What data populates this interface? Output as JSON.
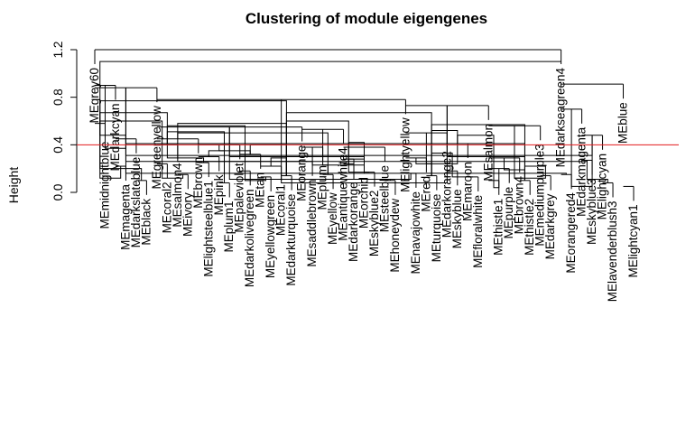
{
  "chart_data": {
    "type": "dendrogram",
    "title": "Clustering of module eigengenes",
    "ylabel": "Height",
    "xlabel": "",
    "ylim": [
      0,
      1.2
    ],
    "yticks": [
      0.0,
      0.4,
      0.8,
      1.2
    ],
    "ytick_labels": [
      "0.0",
      "0.4",
      "0.8",
      "1.2"
    ],
    "cut_height": 0.4,
    "cut_line_color": "#e31a1c",
    "line_color": "#000000",
    "leaves": [
      "MEgrey60",
      "MEmidnightblue",
      "MEdarkcyan",
      "MEmagenta",
      "MEdarkslateblue",
      "MEblack",
      "MEgreenyellow",
      "MEcoral2",
      "MEsalmon4",
      "MEivory",
      "MEbrown",
      "MElightsteelblue1",
      "MEpink",
      "MEplum1",
      "MEpaleviolet",
      "MEdarkolivegreen",
      "MEtan",
      "MEyellowgreen",
      "MEcoral1",
      "MEdarkturquoise",
      "MEorange",
      "MEsaddlebrown",
      "MEplum",
      "MEyellow",
      "MEantiquewhite4",
      "MEdarkorange",
      "MEorchid",
      "MEskyblue2",
      "MEsteelblue",
      "MEhoneydew",
      "MElightyellow",
      "MEnavajowhite",
      "MEred",
      "MEturquoise",
      "MEdarkorange2",
      "MEskyblue",
      "MEmaroon",
      "MEfloralwhite",
      "MEsalmon",
      "MEthistle1",
      "MEpurple",
      "MEbrown4",
      "MEthistle2",
      "MEmediumpurple3",
      "MEdarkgrey",
      "MEdarkseagreen4",
      "MEorangered4",
      "MEdarkmagenta",
      "MEskyblue3",
      "MElightcyan",
      "MElavenderblush3",
      "MEblue",
      "MElightcyan1"
    ],
    "merges": [
      [
        0,
        1,
        0.58
      ],
      [
        2,
        3,
        0.22
      ],
      [
        4,
        5,
        0.1
      ],
      [
        2,
        4,
        0.45
      ],
      [
        0,
        2,
        0.9
      ],
      [
        6,
        7,
        0.24
      ],
      [
        8,
        9,
        0.15
      ],
      [
        6,
        8,
        0.4
      ],
      [
        10,
        11,
        0.25
      ],
      [
        12,
        13,
        0.08
      ],
      [
        10,
        12,
        0.3
      ],
      [
        14,
        15,
        0.18
      ],
      [
        16,
        17,
        0.13
      ],
      [
        18,
        19,
        0.14
      ],
      [
        16,
        18,
        0.22
      ],
      [
        14,
        16,
        0.32
      ],
      [
        10,
        14,
        0.4
      ],
      [
        6,
        10,
        0.45
      ],
      [
        20,
        21,
        0.26
      ],
      [
        22,
        23,
        0.15
      ],
      [
        20,
        22,
        0.38
      ],
      [
        24,
        25,
        0.24
      ],
      [
        26,
        27,
        0.17
      ],
      [
        24,
        26,
        0.28
      ],
      [
        28,
        29,
        0.1
      ],
      [
        24,
        28,
        0.38
      ],
      [
        20,
        24,
        0.53
      ],
      [
        6,
        20,
        0.55
      ],
      [
        30,
        31,
        0.16
      ],
      [
        32,
        33,
        0.14
      ],
      [
        30,
        32,
        0.29
      ],
      [
        34,
        35,
        0.18
      ],
      [
        36,
        37,
        0.13
      ],
      [
        34,
        36,
        0.41
      ],
      [
        30,
        34,
        0.5
      ],
      [
        38,
        39,
        0.1
      ],
      [
        38,
        40,
        0.2
      ],
      [
        41,
        42,
        0.1
      ],
      [
        38,
        41,
        0.29
      ],
      [
        43,
        44,
        0.14
      ],
      [
        38,
        43,
        0.56
      ],
      [
        30,
        38,
        0.73
      ],
      [
        6,
        30,
        0.78
      ],
      [
        0,
        6,
        0.88
      ],
      [
        45,
        46,
        0.15
      ],
      [
        47,
        48,
        0.27
      ],
      [
        49,
        50,
        0.08
      ],
      [
        47,
        49,
        0.48
      ],
      [
        45,
        47,
        0.7
      ],
      [
        51,
        52,
        0.05
      ],
      [
        45,
        51,
        0.91
      ],
      [
        53,
        54,
        0.12
      ],
      [
        53,
        55,
        0.2
      ],
      [
        56,
        57,
        0.37
      ],
      [
        53,
        56,
        0.48
      ],
      [
        58,
        59,
        0.12
      ],
      [
        53,
        58,
        0.6
      ],
      [
        60,
        61,
        0.29
      ],
      [
        62,
        63,
        0.35
      ],
      [
        60,
        62,
        0.51
      ],
      [
        64,
        65,
        0.1
      ],
      [
        60,
        64,
        0.56
      ],
      [
        53,
        60,
        0.67
      ],
      [
        66,
        67,
        0.29
      ],
      [
        68,
        69,
        0.35
      ],
      [
        66,
        68,
        0.4
      ],
      [
        70,
        71,
        0.26
      ],
      [
        72,
        73,
        0.23
      ],
      [
        70,
        72,
        0.5
      ],
      [
        66,
        70,
        0.58
      ],
      [
        74,
        75,
        0.17
      ],
      [
        76,
        77,
        0.11
      ],
      [
        74,
        76,
        0.28
      ],
      [
        78,
        79,
        0.23
      ],
      [
        80,
        81,
        0.11
      ],
      [
        78,
        80,
        0.3
      ],
      [
        74,
        78,
        0.42
      ],
      [
        66,
        74,
        0.6
      ],
      [
        82,
        83,
        0.24
      ],
      [
        84,
        85,
        0.13
      ],
      [
        82,
        84,
        0.33
      ],
      [
        86,
        87,
        0.24
      ],
      [
        88,
        89,
        0.04
      ],
      [
        86,
        88,
        0.48
      ],
      [
        82,
        86,
        0.52
      ],
      [
        90,
        91,
        0.19
      ],
      [
        92,
        93,
        0.12
      ],
      [
        90,
        92,
        0.22
      ],
      [
        94,
        95,
        0.08
      ],
      [
        90,
        94,
        0.3
      ],
      [
        96,
        97,
        0.16
      ],
      [
        98,
        99,
        0.11
      ],
      [
        96,
        98,
        0.26
      ],
      [
        100,
        101,
        0.05
      ],
      [
        96,
        100,
        0.31
      ],
      [
        90,
        96,
        0.41
      ],
      [
        82,
        90,
        0.57
      ],
      [
        66,
        82,
        0.67
      ],
      [
        53,
        66,
        0.77
      ],
      [
        45,
        53,
        1.1
      ],
      [
        0,
        45,
        1.2
      ]
    ]
  }
}
